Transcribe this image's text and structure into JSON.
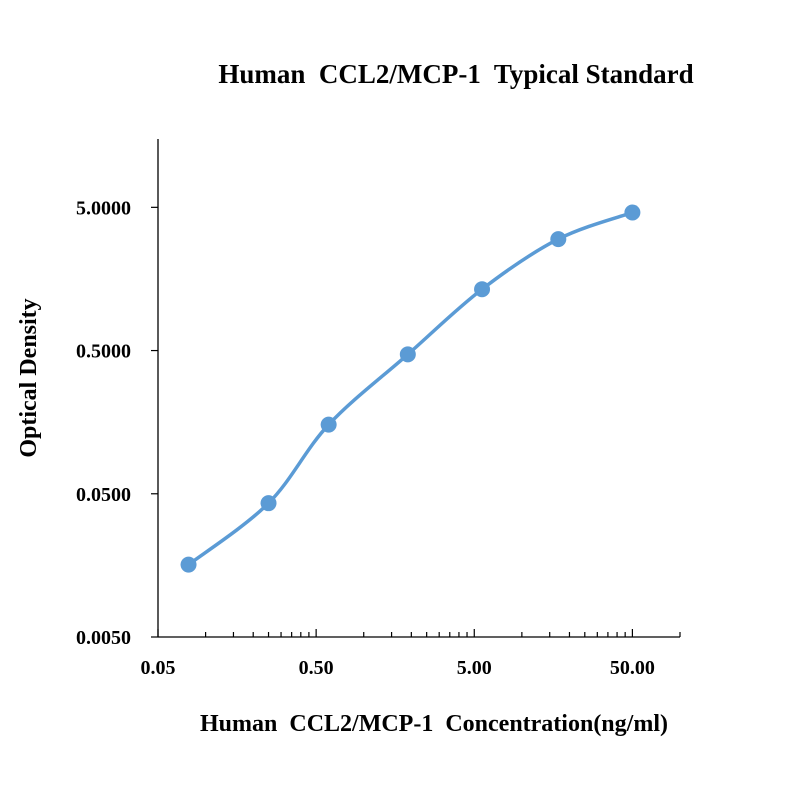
{
  "chart_data": {
    "type": "scatter",
    "title": "Human  CCL2/MCP-1  Typical Standard",
    "xlabel": "Human  CCL2/MCP-1  Concentration(ng/ml)",
    "ylabel": "Optical Density",
    "x_scale": "log",
    "y_scale": "log",
    "xlim": [
      0.05,
      100
    ],
    "ylim": [
      0.005,
      15
    ],
    "x_ticks": [
      0.05,
      0.5,
      5,
      50
    ],
    "x_tick_labels": [
      "0.05",
      "0.50",
      "5.00",
      "50.00"
    ],
    "y_ticks": [
      0.005,
      0.05,
      0.5,
      5
    ],
    "y_tick_labels": [
      "0.0050",
      "0.0500",
      "0.5000",
      "5.0000"
    ],
    "grid": false,
    "legend": "none",
    "series": [
      {
        "x": [
          0.078,
          0.25,
          0.6,
          1.9,
          5.6,
          17,
          50
        ],
        "y": [
          0.016,
          0.043,
          0.152,
          0.47,
          1.34,
          3.0,
          4.6
        ],
        "color": "#5B9BD5",
        "marker": "circle",
        "line": "smooth"
      }
    ]
  }
}
